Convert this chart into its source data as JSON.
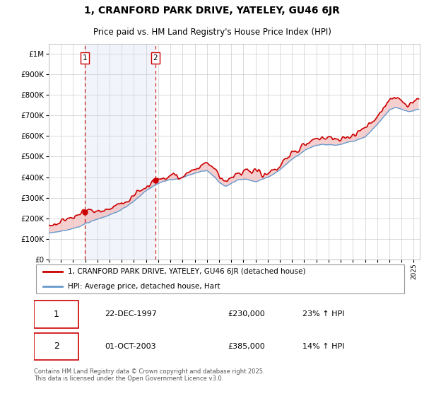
{
  "title": "1, CRANFORD PARK DRIVE, YATELEY, GU46 6JR",
  "subtitle": "Price paid vs. HM Land Registry's House Price Index (HPI)",
  "sale1_date": "22-DEC-1997",
  "sale1_price": 230000,
  "sale1_pct": "23% ↑ HPI",
  "sale1_label": "1",
  "sale1_year": 1997.96,
  "sale2_date": "01-OCT-2003",
  "sale2_price": 385000,
  "sale2_pct": "14% ↑ HPI",
  "sale2_label": "2",
  "sale2_year": 2003.75,
  "legend_property": "1, CRANFORD PARK DRIVE, YATELEY, GU46 6JR (detached house)",
  "legend_hpi": "HPI: Average price, detached house, Hart",
  "footnote": "Contains HM Land Registry data © Crown copyright and database right 2025.\nThis data is licensed under the Open Government Licence v3.0.",
  "line_color_property": "#cc0000",
  "line_color_hpi": "#6699cc",
  "fill_color_property": "#f0b0b0",
  "fill_color_hpi": "#c8d8f0",
  "dashed_color": "#cc0000",
  "background_color": "#ffffff",
  "grid_color": "#cccccc",
  "ylim_min": 0,
  "ylim_max": 1050000,
  "xmin": 1995.0,
  "xmax": 2025.5
}
